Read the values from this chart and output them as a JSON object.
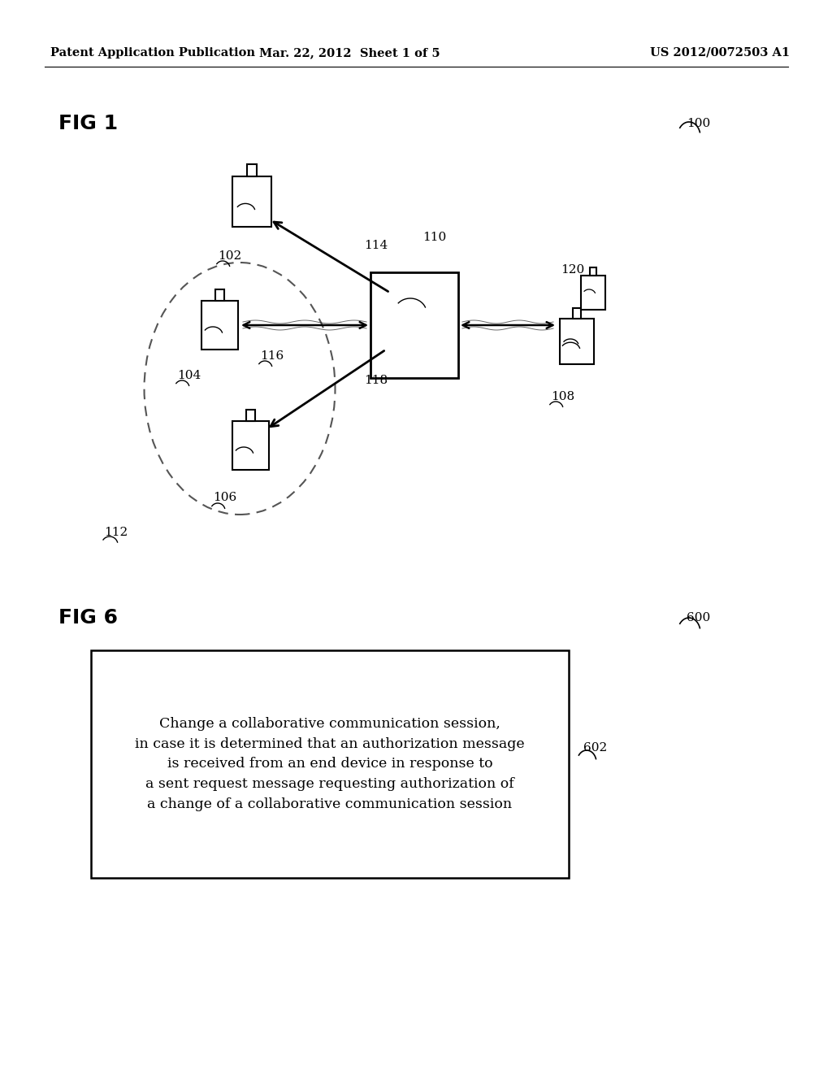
{
  "bg_color": "#ffffff",
  "header_left": "Patent Application Publication",
  "header_center": "Mar. 22, 2012  Sheet 1 of 5",
  "header_right": "US 2012/0072503 A1",
  "fig1_label": "FIG 1",
  "fig6_label": "FIG 6",
  "ref_100": "100",
  "ref_600": "600",
  "ref_102": "102",
  "ref_104": "104",
  "ref_106": "106",
  "ref_108": "108",
  "ref_110": "110",
  "ref_112": "112",
  "ref_114": "114",
  "ref_116": "116",
  "ref_118": "118",
  "ref_120": "120",
  "ref_602": "602",
  "box_text": "Change a collaborative communication session,\nin case it is determined that an authorization message\nis received from an end device in response to\na sent request message requesting authorization of\na change of a collaborative communication session"
}
